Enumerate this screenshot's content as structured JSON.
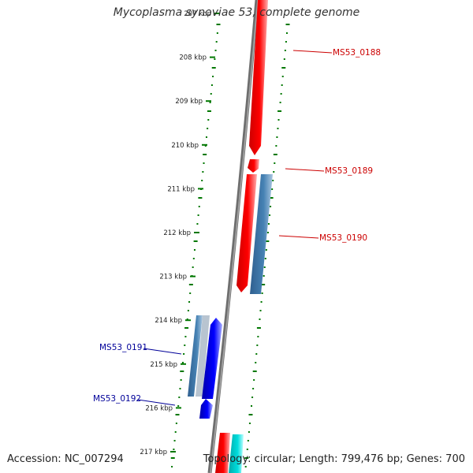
{
  "title": "Mycoplasma synoviae 53, complete genome",
  "accession": "Accession: NC_007294",
  "summary": "Topology: circular; Length: 799,476 bp; Genes: 700",
  "axis": {
    "tick_labels": [
      "207 kbp",
      "208 kbp",
      "209 kbp",
      "210 kbp",
      "211 kbp",
      "212 kbp",
      "213 kbp",
      "214 kbp",
      "215 kbp",
      "216 kbp",
      "217 kbp"
    ]
  },
  "colors": {
    "forward_gene": "#ff0000",
    "reverse_gene": "#0000ff",
    "forward_label": "#cc0000",
    "reverse_label": "#000099",
    "pseudo_gene": "#4682b4",
    "other_gene": "#00cccc",
    "backbone": "#808080",
    "gc_track": "#007700"
  },
  "gene_labels": [
    {
      "id": "ms53_0188",
      "text": "MS53_0188",
      "strand": "forward"
    },
    {
      "id": "ms53_0189",
      "text": "MS53_0189",
      "strand": "forward"
    },
    {
      "id": "ms53_0190",
      "text": "MS53_0190",
      "strand": "forward"
    },
    {
      "id": "ms53_0191",
      "text": "MS53_0191",
      "strand": "reverse"
    },
    {
      "id": "ms53_0192",
      "text": "MS53_0192",
      "strand": "reverse"
    }
  ]
}
